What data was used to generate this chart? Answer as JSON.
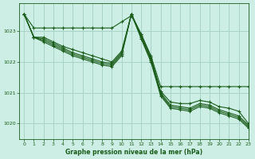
{
  "bg_color": "#cceee4",
  "grid_color": "#aad4c8",
  "line_color": "#1a5c1a",
  "title": "Graphe pression niveau de la mer (hPa)",
  "xlim": [
    -0.5,
    23
  ],
  "ylim": [
    1019.5,
    1023.9
  ],
  "yticks": [
    1020,
    1021,
    1022,
    1023
  ],
  "xticks": [
    0,
    1,
    2,
    3,
    4,
    5,
    6,
    7,
    8,
    9,
    10,
    11,
    12,
    13,
    14,
    15,
    16,
    17,
    18,
    19,
    20,
    21,
    22,
    23
  ],
  "series": [
    [
      1023.55,
      1023.1,
      1023.1,
      1023.1,
      1023.1,
      1023.1,
      1023.1,
      1023.1,
      1023.1,
      1023.1,
      1023.3,
      1023.5,
      1022.9,
      1022.2,
      1021.2,
      1021.2,
      1021.2,
      1021.2,
      1021.2,
      1021.2,
      1021.2,
      1021.2,
      1021.2,
      1021.2
    ],
    [
      1023.55,
      1022.8,
      1022.8,
      1022.65,
      1022.5,
      1022.4,
      1022.3,
      1022.2,
      1022.1,
      1022.0,
      1022.35,
      1023.55,
      1022.9,
      1022.15,
      1021.05,
      1020.7,
      1020.65,
      1020.65,
      1020.75,
      1020.7,
      1020.55,
      1020.5,
      1020.4,
      1020.0
    ],
    [
      1023.55,
      1022.8,
      1022.75,
      1022.6,
      1022.45,
      1022.3,
      1022.2,
      1022.1,
      1022.0,
      1021.95,
      1022.3,
      1023.55,
      1022.85,
      1022.1,
      1021.0,
      1020.6,
      1020.55,
      1020.5,
      1020.65,
      1020.6,
      1020.45,
      1020.35,
      1020.25,
      1019.95
    ],
    [
      1023.55,
      1022.8,
      1022.7,
      1022.55,
      1022.4,
      1022.25,
      1022.15,
      1022.05,
      1021.95,
      1021.9,
      1022.25,
      1023.55,
      1022.8,
      1022.05,
      1020.95,
      1020.55,
      1020.5,
      1020.45,
      1020.6,
      1020.55,
      1020.4,
      1020.3,
      1020.2,
      1019.9
    ],
    [
      1023.55,
      1022.8,
      1022.65,
      1022.5,
      1022.35,
      1022.2,
      1022.1,
      1022.0,
      1021.9,
      1021.85,
      1022.2,
      1023.55,
      1022.75,
      1022.0,
      1020.9,
      1020.5,
      1020.45,
      1020.4,
      1020.55,
      1020.5,
      1020.35,
      1020.25,
      1020.15,
      1019.85
    ]
  ]
}
